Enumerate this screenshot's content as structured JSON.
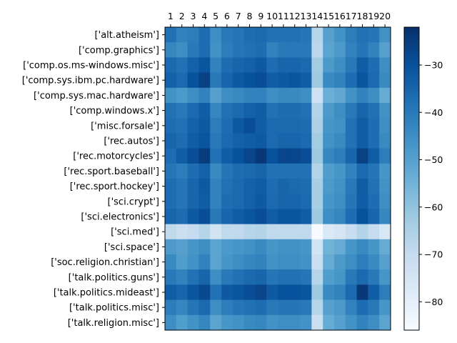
{
  "chart_data": {
    "type": "heatmap",
    "title": "",
    "xlabel": "",
    "ylabel": "",
    "x_categories": [
      "1",
      "2",
      "3",
      "4",
      "5",
      "6",
      "7",
      "8",
      "9",
      "10",
      "11",
      "12",
      "13",
      "14",
      "15",
      "16",
      "17",
      "18",
      "19",
      "20"
    ],
    "y_categories": [
      "['alt.atheism']",
      "['comp.graphics']",
      "['comp.os.ms-windows.misc']",
      "['comp.sys.ibm.pc.hardware']",
      "['comp.sys.mac.hardware']",
      "['comp.windows.x']",
      "['misc.forsale']",
      "['rec.autos']",
      "['rec.motorcycles']",
      "['rec.sport.baseball']",
      "['rec.sport.hockey']",
      "['sci.crypt']",
      "['sci.electronics']",
      "['sci.med']",
      "['sci.space']",
      "['soc.religion.christian']",
      "['talk.politics.guns']",
      "['talk.politics.mideast']",
      "['talk.politics.misc']",
      "['talk.religion.misc']"
    ],
    "colorbar": {
      "min": -86,
      "max": -22,
      "ticks": [
        -30,
        -40,
        -50,
        -60,
        -70,
        -80
      ],
      "tick_labels": [
        "−30",
        "−40",
        "−50",
        "−60",
        "−70",
        "−80"
      ],
      "colormap": "Blues_r",
      "color_low": "#f7fbff",
      "color_high": "#08306b"
    },
    "values": [
      [
        -38,
        -42,
        -41,
        -37,
        -45,
        -40,
        -39,
        -37,
        -36,
        -38,
        -38,
        -38,
        -39,
        -67,
        -50,
        -46,
        -41,
        -38,
        -39,
        -46
      ],
      [
        -43,
        -45,
        -40,
        -37,
        -46,
        -41,
        -39,
        -38,
        -37,
        -42,
        -40,
        -40,
        -40,
        -68,
        -51,
        -48,
        -42,
        -39,
        -42,
        -50
      ],
      [
        -36,
        -38,
        -34,
        -31,
        -42,
        -37,
        -35,
        -34,
        -32,
        -37,
        -35,
        -35,
        -36,
        -63,
        -48,
        -45,
        -40,
        -33,
        -37,
        -45
      ],
      [
        -34,
        -36,
        -30,
        -26,
        -40,
        -35,
        -32,
        -30,
        -29,
        -33,
        -32,
        -31,
        -33,
        -62,
        -44,
        -42,
        -37,
        -31,
        -36,
        -44
      ],
      [
        -46,
        -48,
        -45,
        -42,
        -50,
        -45,
        -44,
        -42,
        -42,
        -45,
        -44,
        -44,
        -45,
        -73,
        -54,
        -52,
        -46,
        -42,
        -45,
        -53
      ],
      [
        -38,
        -40,
        -36,
        -33,
        -43,
        -38,
        -36,
        -34,
        -33,
        -38,
        -37,
        -37,
        -38,
        -66,
        -48,
        -45,
        -40,
        -35,
        -38,
        -46
      ],
      [
        -37,
        -38,
        -34,
        -32,
        -41,
        -37,
        -32,
        -29,
        -33,
        -36,
        -36,
        -36,
        -37,
        -65,
        -47,
        -46,
        -38,
        -33,
        -37,
        -45
      ],
      [
        -35,
        -37,
        -33,
        -31,
        -40,
        -36,
        -34,
        -33,
        -32,
        -36,
        -35,
        -35,
        -36,
        -63,
        -46,
        -44,
        -38,
        -33,
        -37,
        -44
      ],
      [
        -37,
        -33,
        -29,
        -25,
        -38,
        -33,
        -30,
        -27,
        -24,
        -30,
        -27,
        -27,
        -29,
        -62,
        -43,
        -41,
        -35,
        -26,
        -33,
        -41
      ],
      [
        -39,
        -41,
        -37,
        -34,
        -44,
        -39,
        -37,
        -36,
        -35,
        -38,
        -38,
        -38,
        -38,
        -66,
        -49,
        -47,
        -42,
        -36,
        -39,
        -47
      ],
      [
        -37,
        -39,
        -35,
        -32,
        -42,
        -38,
        -36,
        -34,
        -33,
        -37,
        -35,
        -36,
        -37,
        -64,
        -48,
        -46,
        -40,
        -33,
        -38,
        -46
      ],
      [
        -37,
        -39,
        -35,
        -33,
        -42,
        -37,
        -36,
        -34,
        -32,
        -36,
        -35,
        -35,
        -36,
        -64,
        -47,
        -45,
        -39,
        -33,
        -37,
        -45
      ],
      [
        -35,
        -37,
        -32,
        -29,
        -40,
        -35,
        -33,
        -31,
        -29,
        -33,
        -31,
        -31,
        -33,
        -62,
        -45,
        -43,
        -37,
        -30,
        -35,
        -43
      ],
      [
        -69,
        -72,
        -70,
        -67,
        -74,
        -69,
        -69,
        -67,
        -66,
        -69,
        -69,
        -69,
        -69,
        -86,
        -77,
        -75,
        -71,
        -66,
        -70,
        -76
      ],
      [
        -48,
        -50,
        -47,
        -45,
        -51,
        -48,
        -47,
        -46,
        -44,
        -47,
        -46,
        -46,
        -47,
        -74,
        -55,
        -53,
        -47,
        -44,
        -47,
        -53
      ],
      [
        -44,
        -49,
        -46,
        -42,
        -51,
        -47,
        -45,
        -43,
        -42,
        -46,
        -45,
        -45,
        -46,
        -72,
        -53,
        -48,
        -45,
        -41,
        -44,
        -50
      ],
      [
        -40,
        -42,
        -38,
        -35,
        -45,
        -40,
        -38,
        -36,
        -35,
        -39,
        -38,
        -38,
        -39,
        -67,
        -49,
        -47,
        -40,
        -36,
        -40,
        -47
      ],
      [
        -33,
        -35,
        -31,
        -28,
        -38,
        -32,
        -31,
        -29,
        -27,
        -32,
        -30,
        -30,
        -31,
        -62,
        -44,
        -42,
        -36,
        -24,
        -33,
        -41
      ],
      [
        -41,
        -43,
        -39,
        -36,
        -45,
        -41,
        -39,
        -38,
        -37,
        -40,
        -39,
        -39,
        -40,
        -67,
        -50,
        -48,
        -42,
        -37,
        -40,
        -47
      ],
      [
        -45,
        -49,
        -46,
        -43,
        -51,
        -47,
        -46,
        -44,
        -43,
        -46,
        -45,
        -45,
        -46,
        -72,
        -53,
        -50,
        -46,
        -42,
        -45,
        -51
      ]
    ]
  }
}
